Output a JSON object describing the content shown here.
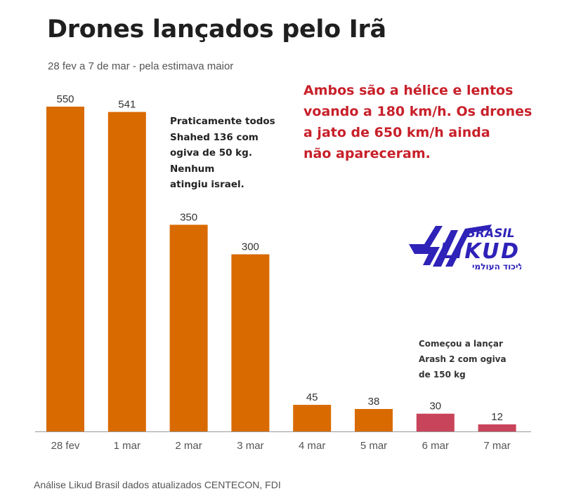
{
  "title": "Drones lançados pelo Irã",
  "subtitle": "28 fev a 7 de mar - pela estimava maior",
  "annotations": {
    "red_note": "Ambos são a hélice e lentos\nvoando a 180 km/h. Os drones\na jato de 650 km/h ainda\nnão apareceram.",
    "shahed_note": "Praticamente todos\nShahed 136 com\nogiva de 50 kg.\nNenhum\natingiu israel.",
    "arash_note": "Começou a lançar\nArash 2 com ogiva\nde 150 kg"
  },
  "logo": {
    "top_text": "BRASIL",
    "main_text": "LIKUD",
    "hebrew_text": "הליכוד העולמי",
    "color": "#2e22b8"
  },
  "footer": "Análise Likud Brasil dados atualizados CENTECON, FDI",
  "colors": {
    "primary_bar": "#d96a00",
    "highlight_bar": "#c8445a",
    "axis": "#999999"
  },
  "chart_data": {
    "type": "bar",
    "title": "Drones lançados pelo Irã",
    "subtitle": "28 fev a 7 de mar - pela estimava maior",
    "xlabel": "",
    "ylabel": "",
    "categories": [
      "28 fev",
      "1 mar",
      "2 mar",
      "3 mar",
      "4 mar",
      "5 mar",
      "6 mar",
      "7 mar"
    ],
    "values": [
      550,
      541,
      350,
      300,
      45,
      38,
      30,
      12
    ],
    "highlighted": [
      false,
      false,
      false,
      false,
      false,
      false,
      true,
      true
    ],
    "data_labels": [
      "550",
      "541",
      "350",
      "300",
      "45",
      "38",
      "30",
      "12"
    ],
    "ylim": [
      0,
      550
    ],
    "grid": false,
    "legend": "none"
  }
}
